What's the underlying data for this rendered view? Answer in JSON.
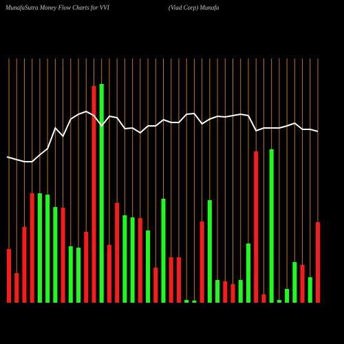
{
  "chart_data": {
    "type": "bar",
    "title": "MunafaSutra  Money  Flow  Charts for VVI",
    "subtitle": "(Viad Corp) Munafa",
    "categories": [
      null,
      null,
      null,
      null,
      null,
      null,
      null,
      null,
      null,
      null,
      null,
      null,
      null,
      null,
      null,
      null,
      null,
      null,
      null,
      null,
      null,
      null,
      null,
      null,
      null,
      null,
      null,
      null,
      null,
      null,
      null,
      null,
      null,
      null,
      null,
      null,
      null,
      null,
      null,
      null,
      null
    ],
    "values": [
      78,
      43,
      110,
      159,
      159,
      157,
      139,
      138,
      82,
      80,
      103,
      315,
      318,
      84,
      145,
      127,
      124,
      123,
      105,
      51,
      151,
      66,
      66,
      4,
      3,
      118,
      149,
      33,
      31,
      27,
      33,
      86,
      220,
      12,
      223,
      4,
      20,
      59,
      55,
      37,
      117
    ],
    "colors": [
      "#ff1a1a",
      "#ff1a1a",
      "#ff1a1a",
      "#ff1a1a",
      "#1aff1a",
      "#1aff1a",
      "#1aff1a",
      "#ff1a1a",
      "#1aff1a",
      "#1aff1a",
      "#ff1a1a",
      "#ff1a1a",
      "#1aff1a",
      "#ff1a1a",
      "#ff1a1a",
      "#1aff1a",
      "#1aff1a",
      "#ff1a1a",
      "#1aff1a",
      "#ff1a1a",
      "#1aff1a",
      "#ff1a1a",
      "#ff1a1a",
      "#1aff1a",
      "#1aff1a",
      "#ff1a1a",
      "#1aff1a",
      "#1aff1a",
      "#ff1a1a",
      "#ff1a1a",
      "#1aff1a",
      "#1aff1a",
      "#ff1a1a",
      "#ff1a1a",
      "#1aff1a",
      "#1aff1a",
      "#1aff1a",
      "#1aff1a",
      "#ff1a1a",
      "#1aff1a",
      "#ff1a1a"
    ],
    "line": {
      "color": "#ffffff",
      "values": [
        212,
        208,
        205,
        205,
        215,
        224,
        254,
        242,
        267,
        274,
        278,
        272,
        257,
        271,
        269,
        253,
        254,
        247,
        257,
        257,
        266,
        262,
        262,
        274,
        275,
        260,
        267,
        271,
        270,
        272,
        274,
        272,
        250,
        254,
        254,
        254,
        257,
        261,
        252,
        252,
        249
      ]
    },
    "grid_color": "#c87800",
    "ylim": [
      0,
      355
    ]
  }
}
